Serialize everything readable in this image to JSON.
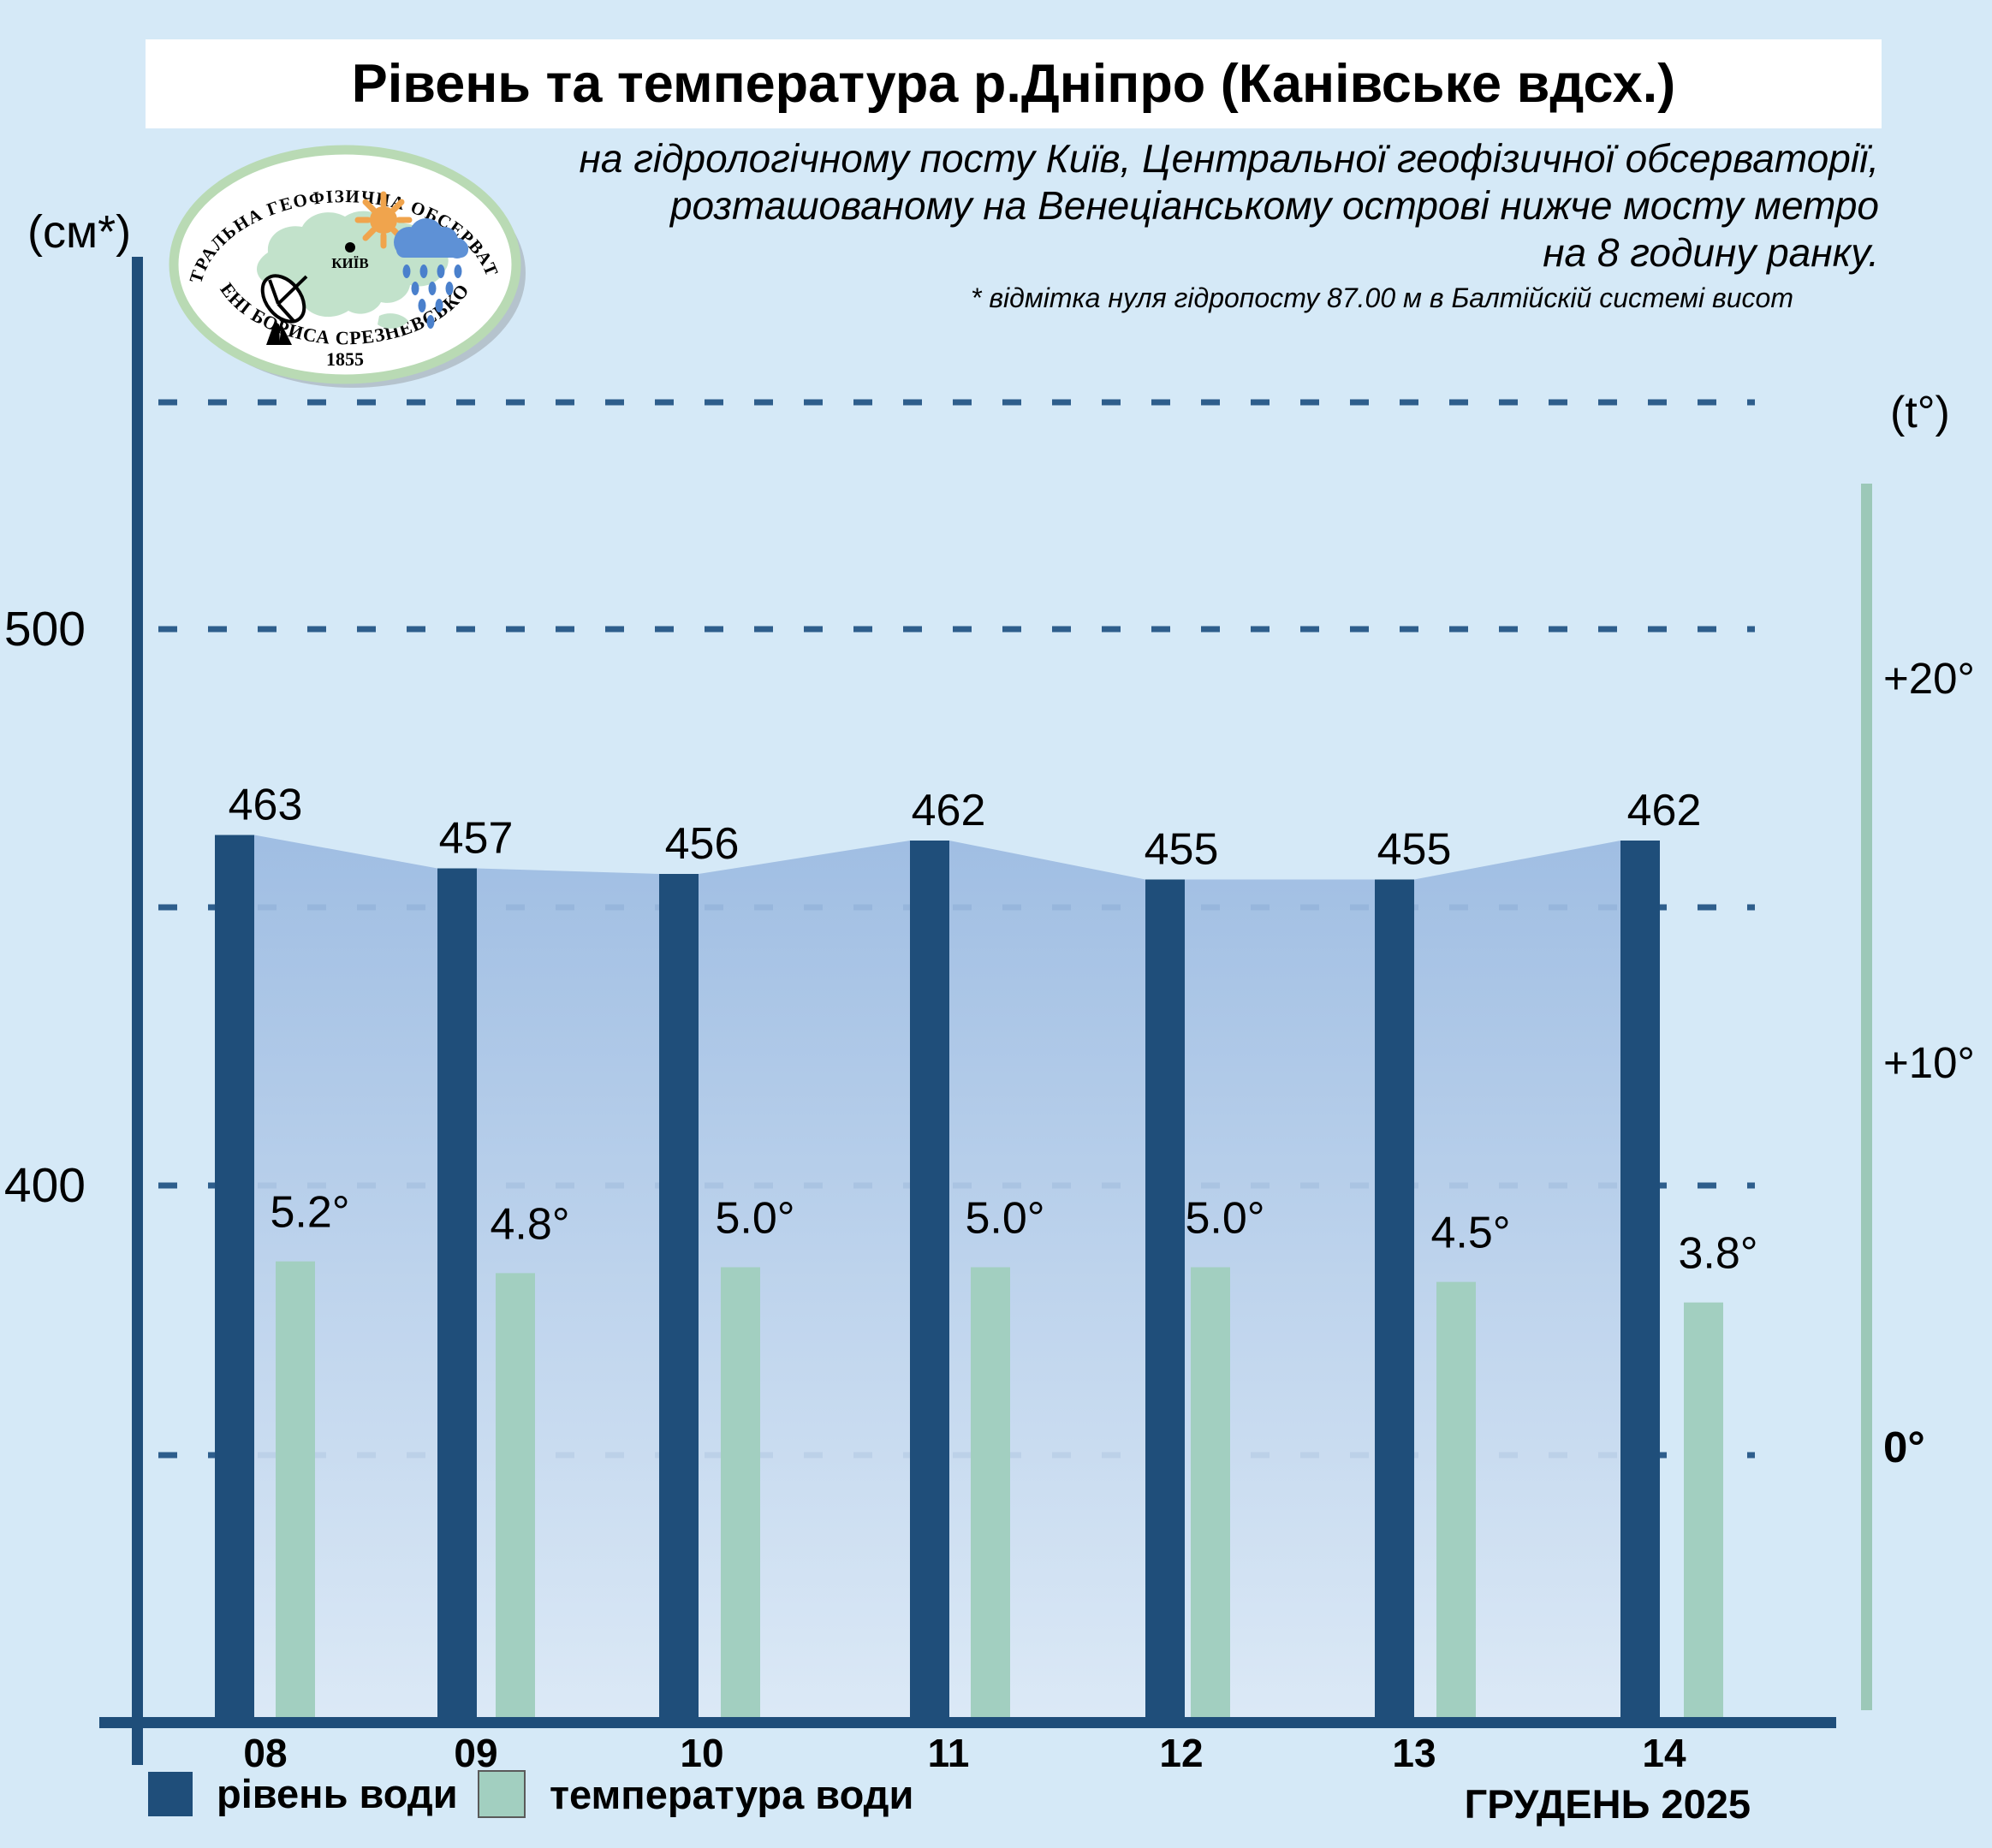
{
  "header": {
    "title": "Рівень та температура р.Дніпро (Канівське вдсх.)",
    "subtitle_lines": [
      "на гідрологічному посту Київ, Центральної геофізичної обсерваторії,",
      "розташованому на Венеціанському острові нижче мосту метро",
      "на 8 годину ранку."
    ],
    "footnote": "* відмітка нуля гідропосту 87.00 м в Балтійскій системі висот"
  },
  "logo": {
    "top_text": "ЦЕНТРАЛЬНА ГЕОФІЗИЧНА ОБСЕРВАТОРІЯ",
    "bottom_text": "ІМЕНІ БОРИСА СРЕЗНЕВСЬКОГО",
    "year": "1855",
    "city_label": "КИЇВ"
  },
  "axes": {
    "left_unit": "(см*)",
    "right_unit": "(t°)"
  },
  "legend": {
    "level_label": "рівень води",
    "temp_label": "температура води"
  },
  "month_label": "ГРУДЕНЬ 2025",
  "colors": {
    "background": "#d5e9f7",
    "title_band": "#ffffff",
    "bar_navy": "#1f4e7a",
    "bar_green": "#a2cfc0",
    "axis_green": "#9cc8b8",
    "grid_dash": "#2e5e8c",
    "area_top": "#9bbae1",
    "area_bottom": "#dce9f6",
    "text": "#000000"
  },
  "chart_data": {
    "type": "bar",
    "title": "Рівень та температура р.Дніпро (Канівське вдсх.)",
    "categories": [
      "08",
      "09",
      "10",
      "11",
      "12",
      "13",
      "14"
    ],
    "series": [
      {
        "name": "рівень води",
        "unit": "см",
        "values": [
          463,
          457,
          456,
          462,
          455,
          455,
          462
        ]
      },
      {
        "name": "температура води",
        "unit": "°C",
        "values": [
          5.2,
          4.8,
          5.0,
          5.0,
          5.0,
          4.5,
          3.8
        ]
      }
    ],
    "left_axis": {
      "label": "(см*)",
      "ticks": [
        500,
        400
      ],
      "gridline_values": [
        500,
        450,
        400
      ]
    },
    "right_axis": {
      "label": "(t°)",
      "ticks": [
        "+20°",
        "+10°",
        "0°"
      ],
      "tick_values": [
        20,
        10,
        0
      ]
    },
    "xlabel": "ГРУДЕНЬ 2025",
    "grid": "dashed-horizontal",
    "legend_position": "bottom"
  }
}
